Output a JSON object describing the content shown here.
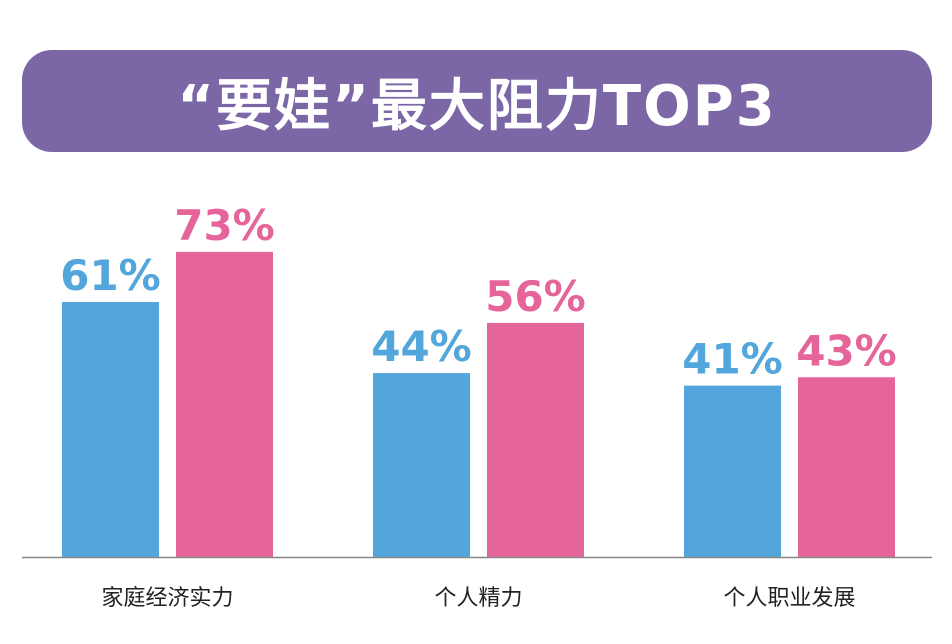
{
  "title": "“要娃”最大阻力TOP3",
  "colors": {
    "banner": "#7b66a6",
    "series_a": "#52a6dc",
    "series_b": "#e5659a",
    "baseline": "#888888"
  },
  "chart_data": {
    "type": "bar",
    "title": "“要娃”最大阻力TOP3",
    "categories": [
      "家庭经济实力",
      "个人精力",
      "个人职业发展"
    ],
    "series": [
      {
        "values": [
          61,
          44,
          41
        ]
      },
      {
        "values": [
          73,
          56,
          43
        ]
      }
    ],
    "value_suffix": "%",
    "ylim": [
      0,
      100
    ],
    "grid": false,
    "legend": "none"
  }
}
